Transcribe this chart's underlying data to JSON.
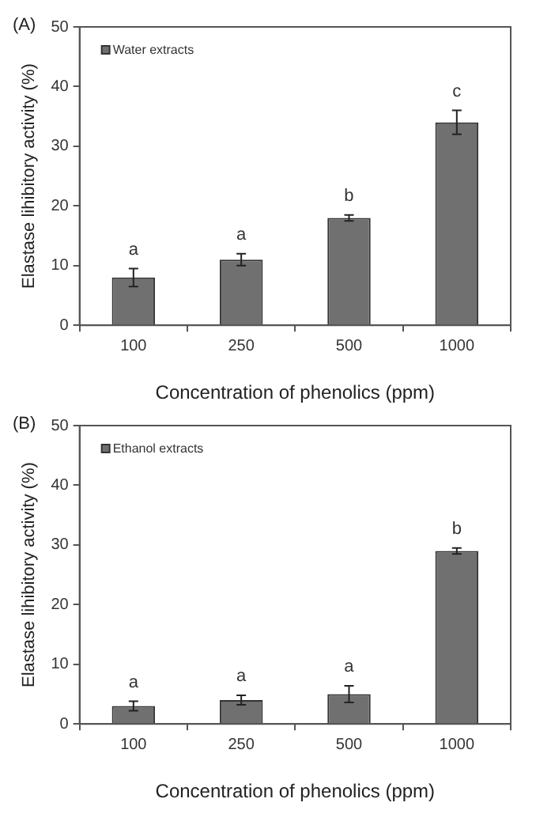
{
  "chart_data": [
    {
      "type": "bar",
      "title": "(A)",
      "xlabel": "Concentration of phenolics (ppm)",
      "ylabel": "Elastase lihibitory activity (%)",
      "categories": [
        "100",
        "250",
        "500",
        "1000"
      ],
      "series": [
        {
          "name": "Water extracts",
          "color": "#707070",
          "values": [
            8,
            11,
            18,
            34
          ],
          "errors": [
            1.5,
            1,
            0.5,
            2
          ]
        }
      ],
      "annotations": [
        "a",
        "a",
        "b",
        "c"
      ],
      "ylim": [
        0,
        50
      ],
      "yticks": [
        0,
        10,
        20,
        30,
        40,
        50
      ],
      "grid": false,
      "legend": "top left"
    },
    {
      "type": "bar",
      "title": "(B)",
      "xlabel": "Concentration of phenolics (ppm)",
      "ylabel": "Elastase lihibitory activity (%)",
      "categories": [
        "100",
        "250",
        "500",
        "1000"
      ],
      "series": [
        {
          "name": "Ethanol extracts",
          "color": "#707070",
          "values": [
            3,
            4,
            5,
            29
          ],
          "errors": [
            0.8,
            0.8,
            1.4,
            0.5
          ]
        }
      ],
      "annotations": [
        "a",
        "a",
        "a",
        "b"
      ],
      "ylim": [
        0,
        50
      ],
      "yticks": [
        0,
        10,
        20,
        30,
        40,
        50
      ],
      "grid": false,
      "legend": "top left"
    }
  ]
}
